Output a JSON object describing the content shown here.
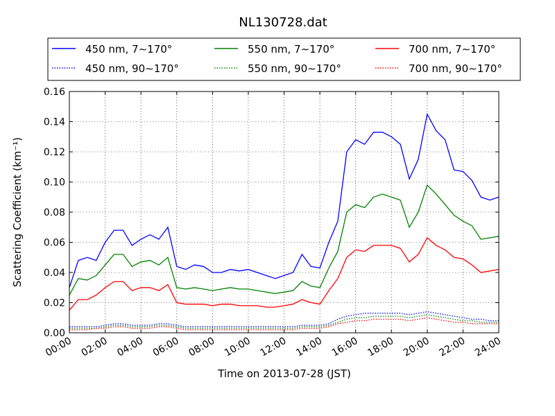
{
  "chart_data": {
    "type": "line",
    "title": "NL130728.dat",
    "xlabel": "Time on 2013-07-28 (JST)",
    "ylabel": "Scattering Coefficient (km⁻¹)",
    "xlim": [
      0,
      24
    ],
    "ylim": [
      0,
      0.16
    ],
    "x_ticks": [
      "00:00",
      "02:00",
      "04:00",
      "06:00",
      "08:00",
      "10:00",
      "12:00",
      "14:00",
      "16:00",
      "18:00",
      "20:00",
      "22:00",
      "24:00"
    ],
    "y_ticks": [
      "0.00",
      "0.02",
      "0.04",
      "0.06",
      "0.08",
      "0.10",
      "0.12",
      "0.14",
      "0.16"
    ],
    "grid": true,
    "legend_placement": "top, above plot, 3 columns",
    "x": [
      0,
      0.5,
      1,
      1.5,
      2,
      2.5,
      3,
      3.5,
      4,
      4.5,
      5,
      5.5,
      6,
      6.5,
      7,
      7.5,
      8,
      8.5,
      9,
      9.5,
      10,
      10.5,
      11,
      11.5,
      12,
      12.5,
      13,
      13.5,
      14,
      14.5,
      15,
      15.5,
      16,
      16.5,
      17,
      17.5,
      18,
      18.5,
      19,
      19.5,
      20,
      20.5,
      21,
      21.5,
      22,
      22.5,
      23,
      23.5,
      24
    ],
    "series": [
      {
        "name": "450 nm, 7∼170°",
        "color": "#0000ff",
        "style": "solid",
        "values": [
          0.03,
          0.048,
          0.05,
          0.048,
          0.06,
          0.068,
          0.068,
          0.058,
          0.062,
          0.065,
          0.062,
          0.07,
          0.044,
          0.042,
          0.045,
          0.044,
          0.04,
          0.04,
          0.042,
          0.041,
          0.042,
          0.04,
          0.038,
          0.036,
          0.038,
          0.04,
          0.052,
          0.044,
          0.043,
          0.06,
          0.074,
          0.12,
          0.128,
          0.125,
          0.133,
          0.133,
          0.13,
          0.125,
          0.102,
          0.115,
          0.145,
          0.134,
          0.128,
          0.108,
          0.107,
          0.101,
          0.09,
          0.088,
          0.09
        ]
      },
      {
        "name": "450 nm, 90∼170°",
        "color": "#0000ff",
        "style": "dotted",
        "values": [
          0.004,
          0.004,
          0.004,
          0.004,
          0.005,
          0.006,
          0.006,
          0.005,
          0.005,
          0.005,
          0.006,
          0.006,
          0.005,
          0.004,
          0.004,
          0.004,
          0.004,
          0.004,
          0.004,
          0.004,
          0.004,
          0.004,
          0.004,
          0.004,
          0.004,
          0.004,
          0.005,
          0.005,
          0.005,
          0.006,
          0.009,
          0.011,
          0.012,
          0.013,
          0.013,
          0.013,
          0.013,
          0.013,
          0.012,
          0.013,
          0.014,
          0.013,
          0.012,
          0.011,
          0.01,
          0.009,
          0.009,
          0.008,
          0.008
        ]
      },
      {
        "name": "550 nm, 7∼170°",
        "color": "#008000",
        "style": "solid",
        "values": [
          0.025,
          0.036,
          0.035,
          0.038,
          0.045,
          0.052,
          0.052,
          0.044,
          0.047,
          0.048,
          0.045,
          0.05,
          0.03,
          0.029,
          0.03,
          0.029,
          0.028,
          0.029,
          0.03,
          0.029,
          0.029,
          0.028,
          0.027,
          0.026,
          0.027,
          0.028,
          0.034,
          0.031,
          0.03,
          0.043,
          0.054,
          0.08,
          0.085,
          0.083,
          0.09,
          0.092,
          0.09,
          0.088,
          0.07,
          0.08,
          0.098,
          0.092,
          0.085,
          0.078,
          0.074,
          0.071,
          0.062,
          0.063,
          0.064
        ]
      },
      {
        "name": "550 nm, 90∼170°",
        "color": "#008000",
        "style": "dotted",
        "values": [
          0.003,
          0.003,
          0.003,
          0.003,
          0.004,
          0.005,
          0.005,
          0.004,
          0.004,
          0.004,
          0.005,
          0.005,
          0.004,
          0.003,
          0.003,
          0.003,
          0.003,
          0.003,
          0.003,
          0.003,
          0.003,
          0.003,
          0.003,
          0.003,
          0.003,
          0.003,
          0.004,
          0.004,
          0.004,
          0.005,
          0.007,
          0.009,
          0.01,
          0.01,
          0.011,
          0.011,
          0.011,
          0.011,
          0.01,
          0.011,
          0.012,
          0.011,
          0.01,
          0.009,
          0.008,
          0.008,
          0.007,
          0.007,
          0.007
        ]
      },
      {
        "name": "700 nm, 7∼170°",
        "color": "#ff0000",
        "style": "solid",
        "values": [
          0.015,
          0.022,
          0.022,
          0.025,
          0.03,
          0.034,
          0.034,
          0.028,
          0.03,
          0.03,
          0.028,
          0.032,
          0.02,
          0.019,
          0.019,
          0.019,
          0.018,
          0.019,
          0.019,
          0.018,
          0.018,
          0.018,
          0.017,
          0.017,
          0.018,
          0.019,
          0.022,
          0.02,
          0.019,
          0.028,
          0.036,
          0.05,
          0.055,
          0.054,
          0.058,
          0.058,
          0.058,
          0.056,
          0.047,
          0.052,
          0.063,
          0.058,
          0.055,
          0.05,
          0.049,
          0.045,
          0.04,
          0.041,
          0.042
        ]
      },
      {
        "name": "700 nm, 90∼170°",
        "color": "#ff0000",
        "style": "dotted",
        "values": [
          0.002,
          0.002,
          0.002,
          0.003,
          0.003,
          0.004,
          0.004,
          0.003,
          0.003,
          0.003,
          0.004,
          0.004,
          0.003,
          0.002,
          0.002,
          0.002,
          0.002,
          0.002,
          0.002,
          0.002,
          0.002,
          0.002,
          0.002,
          0.002,
          0.002,
          0.002,
          0.003,
          0.003,
          0.003,
          0.004,
          0.006,
          0.007,
          0.008,
          0.008,
          0.009,
          0.009,
          0.009,
          0.009,
          0.008,
          0.009,
          0.01,
          0.009,
          0.008,
          0.007,
          0.007,
          0.006,
          0.006,
          0.006,
          0.006
        ]
      }
    ]
  }
}
